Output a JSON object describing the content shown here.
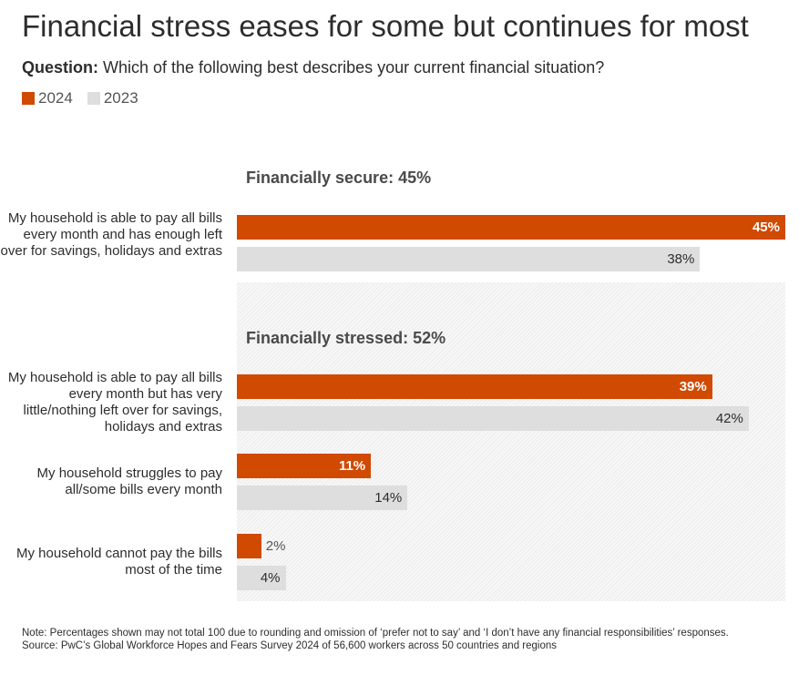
{
  "title": "Financial stress eases for some but continues for most",
  "question": {
    "label": "Question:",
    "text": " Which of the following best describes your current financial situation?"
  },
  "colors": {
    "2024": "#d04a02",
    "2023": "#dedede"
  },
  "chart_data": {
    "type": "bar",
    "orientation": "horizontal",
    "xlim": [
      0,
      45
    ],
    "legend": "top-left",
    "groups": [
      {
        "label": "Financially secure: 45%",
        "categories": [
          0
        ]
      },
      {
        "label": "Financially stressed: 52%",
        "categories": [
          1,
          2,
          3
        ]
      }
    ],
    "categories": [
      "My household is able to pay all bills every month and has enough left over for savings, holidays and extras",
      "My household is able to pay all bills every month but has very little/nothing left over for savings, holidays and extras",
      "My household struggles to pay all/some bills every month",
      "My household cannot pay the bills most of the time"
    ],
    "series": [
      {
        "name": "2024",
        "values": [
          45,
          39,
          11,
          2
        ],
        "labels": [
          "45%",
          "39%",
          "11%",
          "2%"
        ]
      },
      {
        "name": "2023",
        "values": [
          38,
          42,
          14,
          4
        ],
        "labels": [
          "38%",
          "42%",
          "14%",
          "4%"
        ]
      }
    ]
  },
  "notes": {
    "note": "Note: Percentages shown may not total 100 due to rounding and omission of ‘prefer not to say’ and ‘I don’t have any financial responsibilities’ responses.",
    "source": "Source: PwC’s Global Workforce Hopes and Fears Survey 2024 of 56,600 workers across 50 countries and regions"
  }
}
